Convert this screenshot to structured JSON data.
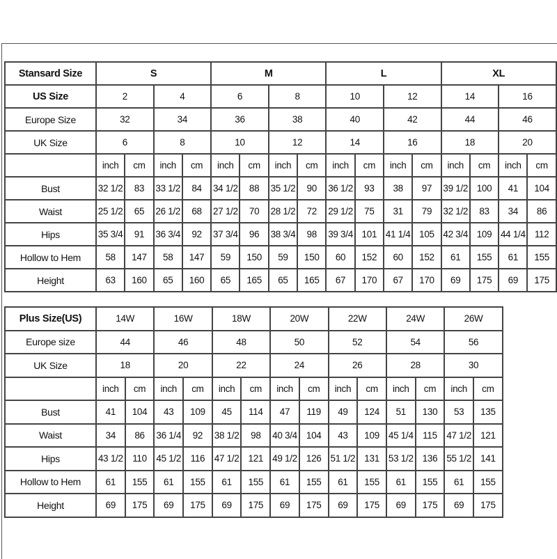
{
  "standard": {
    "header_label": "Stansard Size",
    "groups": [
      "S",
      "M",
      "L",
      "XL"
    ],
    "us_label": "US Size",
    "us_sizes": [
      "2",
      "4",
      "6",
      "8",
      "10",
      "12",
      "14",
      "16"
    ],
    "europe_label": "Europe Size",
    "europe_sizes": [
      "32",
      "34",
      "36",
      "38",
      "40",
      "42",
      "44",
      "46"
    ],
    "uk_label": "UK Size",
    "uk_sizes": [
      "6",
      "8",
      "10",
      "12",
      "14",
      "16",
      "18",
      "20"
    ],
    "unit_inch": "inch",
    "unit_cm": "cm",
    "measurements": [
      {
        "label": "Bust",
        "values": [
          "32 1/2",
          "83",
          "33 1/2",
          "84",
          "34 1/2",
          "88",
          "35 1/2",
          "90",
          "36 1/2",
          "93",
          "38",
          "97",
          "39 1/2",
          "100",
          "41",
          "104"
        ]
      },
      {
        "label": "Waist",
        "values": [
          "25 1/2",
          "65",
          "26 1/2",
          "68",
          "27 1/2",
          "70",
          "28 1/2",
          "72",
          "29 1/2",
          "75",
          "31",
          "79",
          "32 1/2",
          "83",
          "34",
          "86"
        ]
      },
      {
        "label": "Hips",
        "values": [
          "35 3/4",
          "91",
          "36 3/4",
          "92",
          "37 3/4",
          "96",
          "38 3/4",
          "98",
          "39 3/4",
          "101",
          "41 1/4",
          "105",
          "42 3/4",
          "109",
          "44 1/4",
          "112"
        ]
      },
      {
        "label": "Hollow to Hem",
        "values": [
          "58",
          "147",
          "58",
          "147",
          "59",
          "150",
          "59",
          "150",
          "60",
          "152",
          "60",
          "152",
          "61",
          "155",
          "61",
          "155"
        ]
      },
      {
        "label": "Height",
        "values": [
          "63",
          "160",
          "65",
          "160",
          "65",
          "165",
          "65",
          "165",
          "67",
          "170",
          "67",
          "170",
          "69",
          "175",
          "69",
          "175"
        ]
      }
    ]
  },
  "plus": {
    "header_label": "Plus Size(US)",
    "us_sizes": [
      "14W",
      "16W",
      "18W",
      "20W",
      "22W",
      "24W",
      "26W"
    ],
    "europe_label": "Europe size",
    "europe_sizes": [
      "44",
      "46",
      "48",
      "50",
      "52",
      "54",
      "56"
    ],
    "uk_label": "UK Size",
    "uk_sizes": [
      "18",
      "20",
      "22",
      "24",
      "26",
      "28",
      "30"
    ],
    "unit_inch": "inch",
    "unit_cm": "cm",
    "measurements": [
      {
        "label": "Bust",
        "values": [
          "41",
          "104",
          "43",
          "109",
          "45",
          "114",
          "47",
          "119",
          "49",
          "124",
          "51",
          "130",
          "53",
          "135"
        ]
      },
      {
        "label": "Waist",
        "values": [
          "34",
          "86",
          "36 1/4",
          "92",
          "38 1/2",
          "98",
          "40 3/4",
          "104",
          "43",
          "109",
          "45 1/4",
          "115",
          "47 1/2",
          "121"
        ]
      },
      {
        "label": "Hips",
        "values": [
          "43 1/2",
          "110",
          "45 1/2",
          "116",
          "47 1/2",
          "121",
          "49 1/2",
          "126",
          "51 1/2",
          "131",
          "53 1/2",
          "136",
          "55 1/2",
          "141"
        ]
      },
      {
        "label": "Hollow to Hem",
        "values": [
          "61",
          "155",
          "61",
          "155",
          "61",
          "155",
          "61",
          "155",
          "61",
          "155",
          "61",
          "155",
          "61",
          "155"
        ]
      },
      {
        "label": "Height",
        "values": [
          "69",
          "175",
          "69",
          "175",
          "69",
          "175",
          "69",
          "175",
          "69",
          "175",
          "69",
          "175",
          "69",
          "175"
        ]
      }
    ]
  }
}
